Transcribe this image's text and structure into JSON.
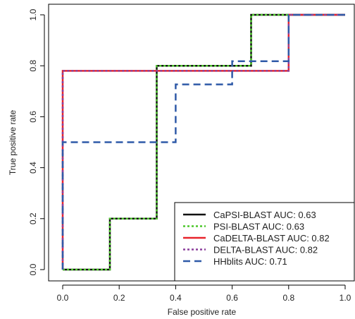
{
  "chart_data": {
    "type": "line",
    "xlabel": "False positive rate",
    "ylabel": "True positive rate",
    "xlim": [
      0,
      1
    ],
    "ylim": [
      0,
      1
    ],
    "x_ticks": [
      "0.0",
      "0.2",
      "0.4",
      "0.6",
      "0.8",
      "1.0"
    ],
    "y_ticks": [
      "0.0",
      "0.2",
      "0.4",
      "0.6",
      "0.8",
      "1.0"
    ],
    "grid": false,
    "legend_position": "bottom-right",
    "series": [
      {
        "name": "CaPSI-BLAST AUC: 0.63",
        "color": "#111111",
        "dash": "solid",
        "x": [
          0,
          0,
          0.167,
          0.167,
          0.333,
          0.333,
          0.667,
          0.667,
          1.0
        ],
        "y": [
          0,
          0,
          0,
          0.2,
          0.2,
          0.8,
          0.8,
          1.0,
          1.0
        ]
      },
      {
        "name": "PSI-BLAST AUC: 0.63",
        "color": "#4cc72a",
        "dash": "dotted",
        "x": [
          0,
          0,
          0.167,
          0.167,
          0.333,
          0.333,
          0.667,
          0.667,
          1.0
        ],
        "y": [
          0,
          0,
          0,
          0.2,
          0.2,
          0.8,
          0.8,
          1.0,
          1.0
        ]
      },
      {
        "name": "CaDELTA-BLAST AUC:  0.82",
        "color": "#e8242b",
        "dash": "solid",
        "x": [
          0,
          0,
          0.8,
          0.8,
          1.0
        ],
        "y": [
          0,
          0.78,
          0.78,
          1.0,
          1.0
        ]
      },
      {
        "name": "DELTA-BLAST AUC:  0.82",
        "color": "#8b3f9c",
        "dash": "dotted",
        "x": [
          0,
          0,
          0.8,
          0.8,
          1.0
        ],
        "y": [
          0,
          0.78,
          0.78,
          1.0,
          1.0
        ]
      },
      {
        "name": "HHblits AUC:  0.71",
        "color": "#2f5aa8",
        "dash": "dashed",
        "x": [
          0,
          0,
          0.4,
          0.4,
          0.6,
          0.6,
          0.8,
          0.8,
          1.0
        ],
        "y": [
          0,
          0.5,
          0.5,
          0.727,
          0.727,
          0.818,
          0.818,
          1.0,
          1.0
        ]
      }
    ]
  }
}
